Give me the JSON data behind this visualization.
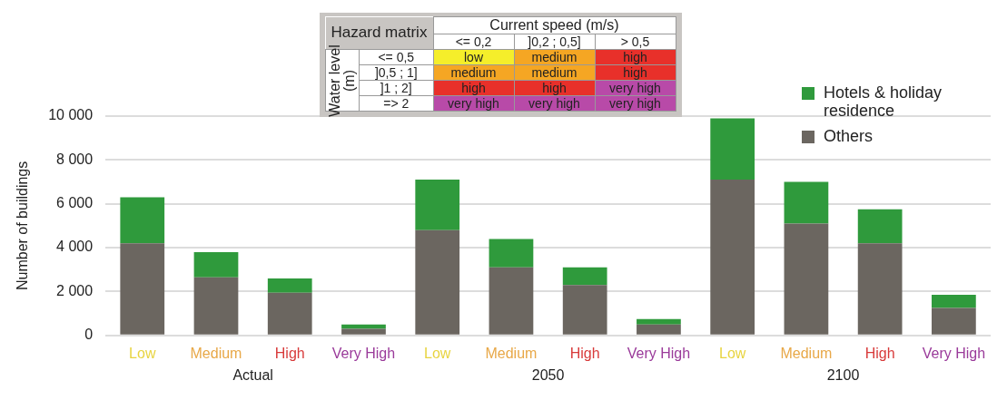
{
  "chart_data": {
    "type": "bar",
    "stacked": true,
    "ylabel": "Number of buildings",
    "categories": [
      "Low",
      "Medium",
      "High",
      "Very High",
      "Low",
      "Medium",
      "High",
      "Very High",
      "Low",
      "Medium",
      "High",
      "Very High"
    ],
    "series": [
      {
        "name": "Others",
        "color": "#6b6660",
        "values": [
          4200,
          2650,
          1950,
          300,
          4800,
          3100,
          2300,
          500,
          7100,
          5100,
          4200,
          1250
        ]
      },
      {
        "name": "Hotels & holiday residence",
        "color": "#2f9a3c",
        "values": [
          2100,
          1150,
          650,
          200,
          2300,
          1300,
          800,
          250,
          2800,
          1900,
          1550,
          600
        ]
      }
    ],
    "ylim": [
      0,
      10000
    ],
    "yticks": [
      0,
      {
        "value": 2000,
        "label": "2 000"
      },
      {
        "value": 4000,
        "label": "4 000"
      },
      {
        "value": 6000,
        "label": "6 000"
      },
      {
        "value": 8000,
        "label": "8 000"
      },
      {
        "value": 10000,
        "label": "10 000"
      }
    ],
    "grid": "y",
    "legend": "top right",
    "annotations": [
      "Hazard matrix",
      "Current speed (m/s)",
      "<= 0,2",
      "]0,2 ; 0,5]",
      "> 0,5",
      "Water level (m)",
      "<= 0,5",
      "]0,5 ; 1]",
      "]1 ; 2]",
      "=> 2",
      "low",
      "medium",
      "high",
      "medium",
      "medium",
      "high",
      "high",
      "high",
      "very high",
      "very high",
      "very high",
      "very high",
      "Actual",
      "2050",
      "2100"
    ]
  }
}
